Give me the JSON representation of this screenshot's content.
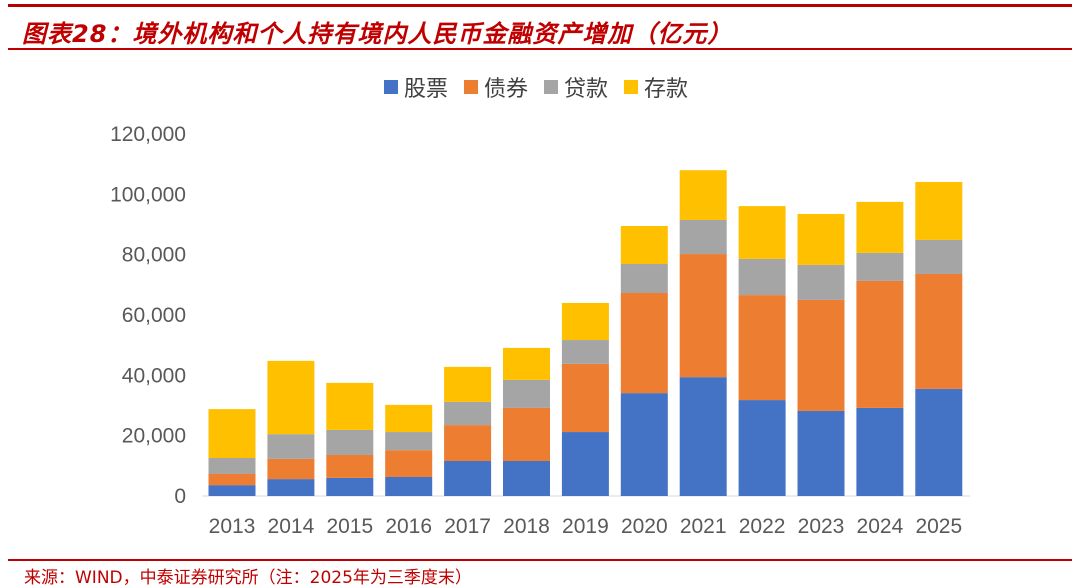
{
  "title": "图表28：境外机构和个人持有境内人民币金融资产增加（亿元）",
  "source": "来源：WIND，中泰证券研究所（注：2025年为三季度末）",
  "chart_data": {
    "type": "bar",
    "stacked": true,
    "categories": [
      "2013",
      "2014",
      "2015",
      "2016",
      "2017",
      "2018",
      "2019",
      "2020",
      "2021",
      "2022",
      "2023",
      "2024",
      "2025"
    ],
    "series": [
      {
        "name": "股票",
        "color": "#4472C4",
        "values": [
          3600,
          5600,
          6000,
          6300,
          11600,
          11600,
          21200,
          34100,
          39400,
          31800,
          28200,
          29200,
          35500
        ]
      },
      {
        "name": "债券",
        "color": "#ED7D31",
        "values": [
          3700,
          6700,
          7600,
          8900,
          11900,
          17600,
          22600,
          33200,
          40800,
          34800,
          36800,
          42100,
          38100
        ]
      },
      {
        "name": "贷款",
        "color": "#A5A5A5",
        "values": [
          5300,
          8200,
          8300,
          6000,
          7700,
          9300,
          7900,
          9600,
          11300,
          12000,
          11600,
          9300,
          11300
        ]
      },
      {
        "name": "存款",
        "color": "#FFC000",
        "values": [
          16200,
          24300,
          15600,
          9000,
          11600,
          10600,
          12300,
          12600,
          16500,
          17500,
          16900,
          16900,
          19200
        ]
      }
    ],
    "yticks": [
      "0",
      "20,000",
      "40,000",
      "60,000",
      "80,000",
      "100,000",
      "120,000"
    ],
    "ylim": [
      0,
      120000
    ],
    "grid": false,
    "legend": "top"
  }
}
